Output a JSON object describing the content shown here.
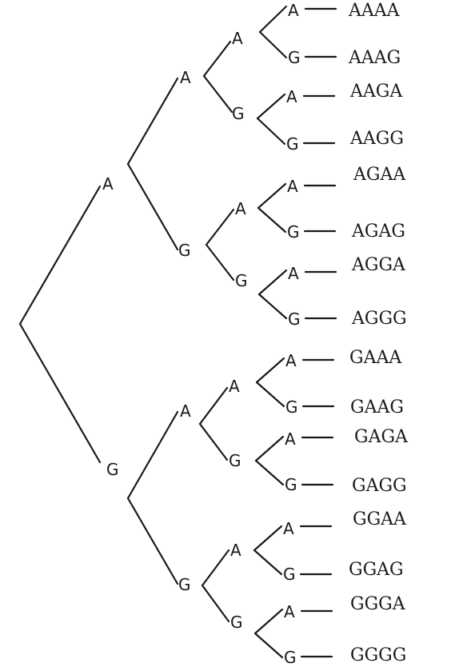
{
  "tree": {
    "l1": [
      {
        "name": "node-a",
        "label": "A"
      },
      {
        "name": "node-g",
        "label": "G"
      }
    ],
    "l2": [
      {
        "name": "node-aa",
        "label": "A"
      },
      {
        "name": "node-ag",
        "label": "G"
      },
      {
        "name": "node-ga",
        "label": "A"
      },
      {
        "name": "node-gg",
        "label": "G"
      }
    ],
    "l3": [
      {
        "name": "node-aaa",
        "label": "A"
      },
      {
        "name": "node-aag",
        "label": "G"
      },
      {
        "name": "node-aga",
        "label": "A"
      },
      {
        "name": "node-agg",
        "label": "G"
      },
      {
        "name": "node-gaa",
        "label": "A"
      },
      {
        "name": "node-gag",
        "label": "G"
      },
      {
        "name": "node-gga",
        "label": "A"
      },
      {
        "name": "node-ggg",
        "label": "G"
      }
    ],
    "l4": [
      "A",
      "G",
      "A",
      "G",
      "A",
      "G",
      "A",
      "G",
      "A",
      "G",
      "A",
      "G",
      "A",
      "G",
      "A",
      "G"
    ],
    "outcomes": [
      "AAAA",
      "AAAG",
      "AAGA",
      "AAGG",
      "AGAA",
      "AGAG",
      "AGGA",
      "AGGG",
      "GAAA",
      "GAAG",
      "GAGA",
      "GAGG",
      "GGAA",
      "GGAG",
      "GGGA",
      "GGGG"
    ]
  }
}
